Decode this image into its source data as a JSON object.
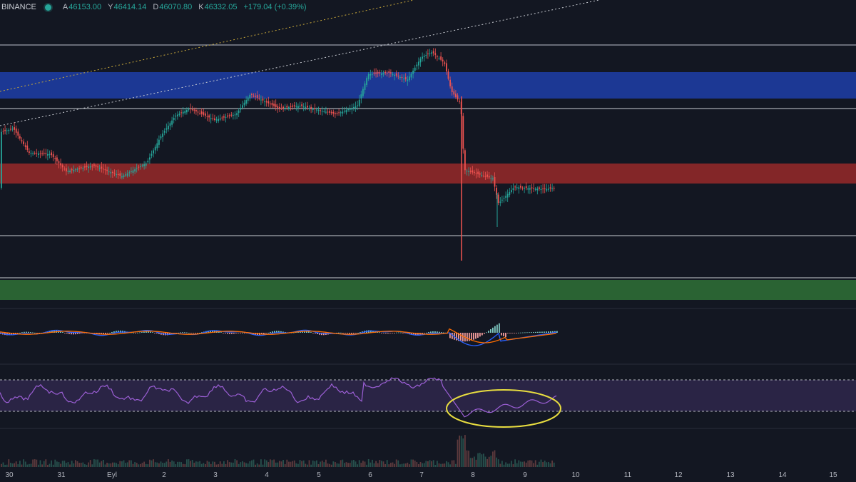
{
  "symbol_header": {
    "exchange": "BINANCE",
    "open_label": "A",
    "open": "46153.00",
    "high_label": "Y",
    "high": "46414.14",
    "low_label": "D",
    "low": "46070.80",
    "close_label": "K",
    "close": "46332.05",
    "change": "+179.04 (+0.39%)"
  },
  "time_axis": [
    "30",
    "31",
    "Eyl",
    "2",
    "3",
    "4",
    "5",
    "6",
    "7",
    "8",
    "9",
    "10",
    "11",
    "12",
    "13",
    "14",
    "15"
  ],
  "colors": {
    "background": "#131722",
    "up_candle": "#26a69a",
    "down_candle": "#ef5350",
    "resistance_zone": "#1e3ea8",
    "support_zone": "#a02a2a",
    "demand_zone": "#2e6b35",
    "rsi_band": "#7e57c2",
    "macd_line": "#2962ff",
    "signal_line": "#ff6d00",
    "annotation_circle": "#e8dd40"
  },
  "indicators": [
    "MACD",
    "RSI",
    "Volume"
  ],
  "annotation": "yellow-ellipse-around-rsi"
}
